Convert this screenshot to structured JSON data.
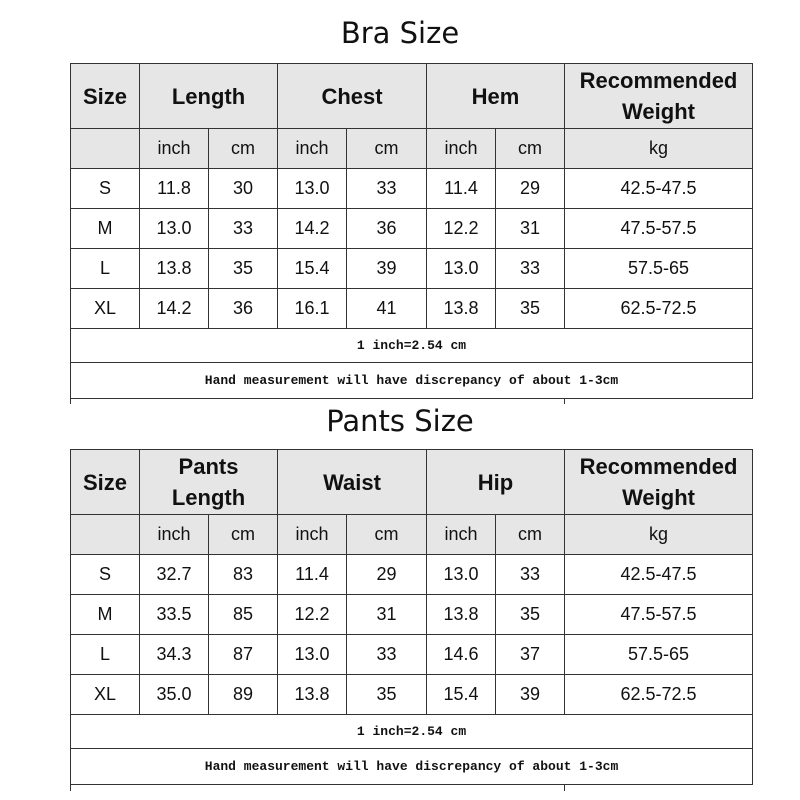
{
  "tables": [
    {
      "title": "Bra Size",
      "headers": [
        "Size",
        "Length",
        "Chest",
        "Hem",
        "Recommended Weight"
      ],
      "units": [
        "",
        "inch",
        "cm",
        "inch",
        "cm",
        "inch",
        "cm",
        "kg"
      ],
      "rows": [
        [
          "S",
          "11.8",
          "30",
          "13.0",
          "33",
          "11.4",
          "29",
          "42.5-47.5"
        ],
        [
          "M",
          "13.0",
          "33",
          "14.2",
          "36",
          "12.2",
          "31",
          "47.5-57.5"
        ],
        [
          "L",
          "13.8",
          "35",
          "15.4",
          "39",
          "13.0",
          "33",
          "57.5-65"
        ],
        [
          "XL",
          "14.2",
          "36",
          "16.1",
          "41",
          "13.8",
          "35",
          "62.5-72.5"
        ]
      ],
      "notes": [
        "1 inch=2.54 cm",
        "Hand measurement will have discrepancy of about 1-3cm"
      ]
    },
    {
      "title": "Pants Size",
      "headers": [
        "Size",
        "Pants Length",
        "Waist",
        "Hip",
        "Recommended Weight"
      ],
      "units": [
        "",
        "inch",
        "cm",
        "inch",
        "cm",
        "inch",
        "cm",
        "kg"
      ],
      "rows": [
        [
          "S",
          "32.7",
          "83",
          "11.4",
          "29",
          "13.0",
          "33",
          "42.5-47.5"
        ],
        [
          "M",
          "33.5",
          "85",
          "12.2",
          "31",
          "13.8",
          "35",
          "47.5-57.5"
        ],
        [
          "L",
          "34.3",
          "87",
          "13.0",
          "33",
          "14.6",
          "37",
          "57.5-65"
        ],
        [
          "XL",
          "35.0",
          "89",
          "13.8",
          "35",
          "15.4",
          "39",
          "62.5-72.5"
        ]
      ],
      "notes": [
        "1 inch=2.54 cm",
        "Hand measurement will have discrepancy of about 1-3cm"
      ]
    }
  ],
  "colors": {
    "header_bg": "#e6e6e6",
    "border": "#333333"
  }
}
